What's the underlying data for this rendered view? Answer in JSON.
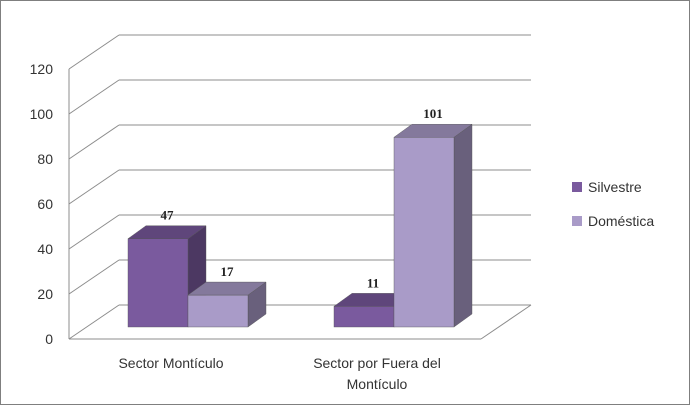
{
  "chart_data": {
    "type": "bar",
    "style": "3d-clustered-column",
    "categories": [
      "Sector Montículo",
      "Sector por Fuera del Montículo"
    ],
    "series": [
      {
        "name": "Silvestre",
        "values": [
          47,
          11
        ],
        "color": "#7a5a9e"
      },
      {
        "name": "Doméstica",
        "values": [
          17,
          101
        ],
        "color": "#a99bc8"
      }
    ],
    "yticks": [
      0,
      20,
      40,
      60,
      80,
      100,
      120
    ],
    "ylim": [
      0,
      120
    ],
    "grid": true,
    "legend": "right",
    "title": "",
    "xlabel": "",
    "ylabel": ""
  }
}
